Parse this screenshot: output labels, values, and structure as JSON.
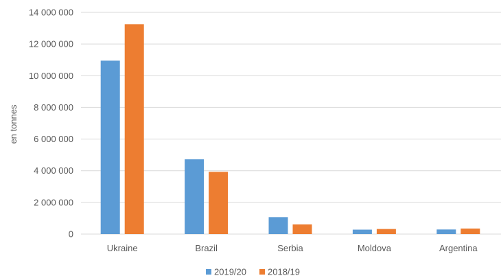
{
  "chart_data": {
    "type": "bar",
    "categories": [
      "Ukraine",
      "Brazil",
      "Serbia",
      "Moldova",
      "Argentina"
    ],
    "series": [
      {
        "name": "2019/20",
        "color": "#5b9bd5",
        "values": [
          10950000,
          4720000,
          1070000,
          280000,
          290000
        ]
      },
      {
        "name": "2018/19",
        "color": "#ed7d31",
        "values": [
          13250000,
          3930000,
          610000,
          320000,
          350000
        ]
      }
    ],
    "ylabel": "en tonnes",
    "ylim": [
      0,
      14000000
    ],
    "yticks": [
      0,
      2000000,
      4000000,
      6000000,
      8000000,
      10000000,
      12000000,
      14000000
    ],
    "ytick_labels": [
      "0",
      "2 000 000",
      "4 000 000",
      "6 000 000",
      "8 000 000",
      "10 000 000",
      "12 000 000",
      "14 000 000"
    ],
    "grid": true,
    "legend_position": "bottom"
  }
}
